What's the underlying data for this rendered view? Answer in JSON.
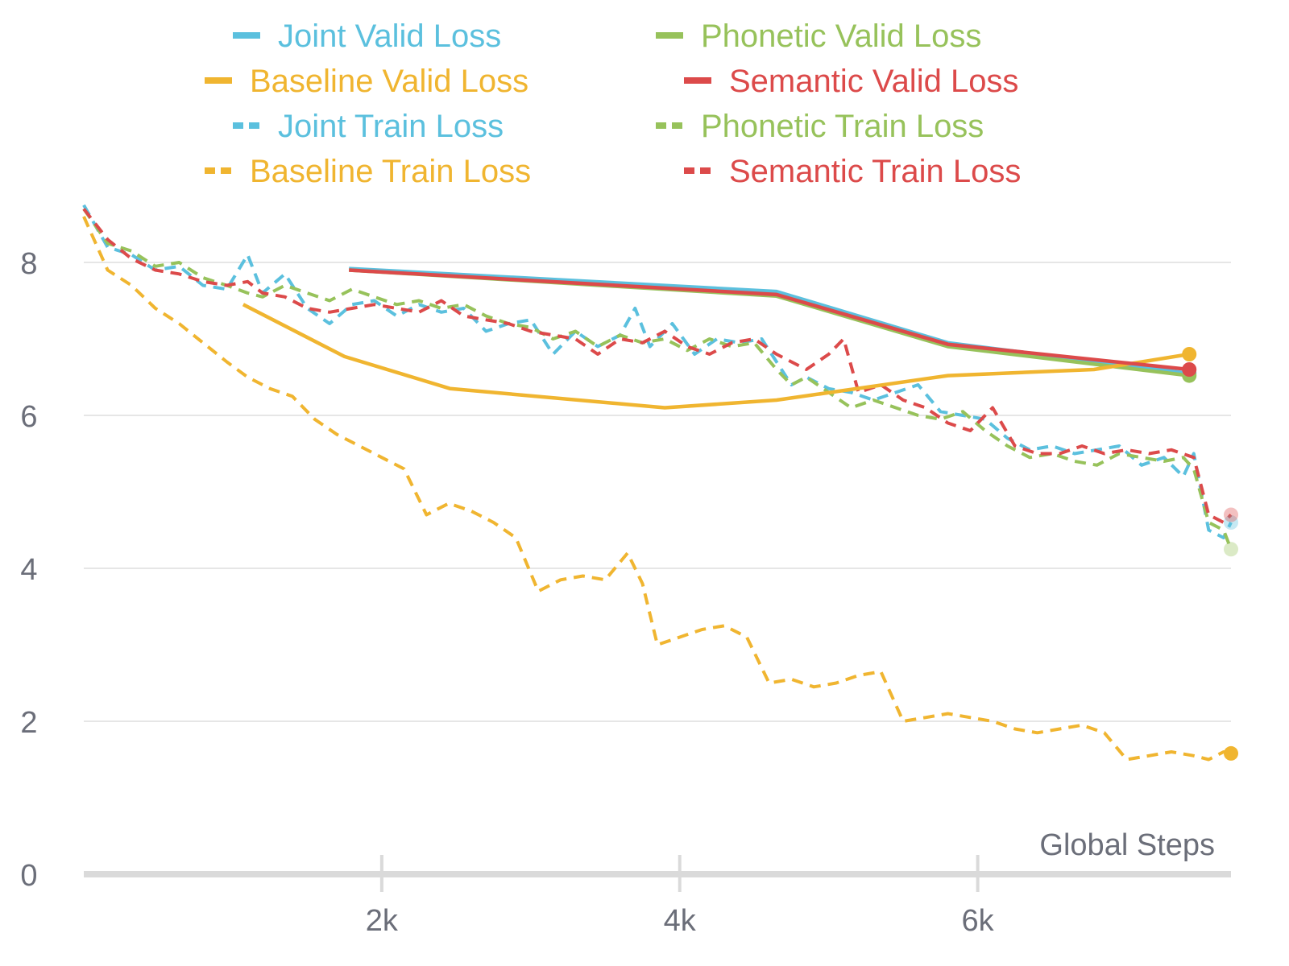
{
  "chart_data": {
    "type": "line",
    "xlabel": "Global Steps",
    "ylabel": "",
    "xlim": [
      0,
      7700
    ],
    "ylim": [
      0,
      8.8
    ],
    "x_ticks": [
      {
        "value": 2000,
        "label": "2k"
      },
      {
        "value": 4000,
        "label": "4k"
      },
      {
        "value": 6000,
        "label": "6k"
      }
    ],
    "y_ticks": [
      {
        "value": 0,
        "label": "0"
      },
      {
        "value": 2,
        "label": "2"
      },
      {
        "value": 4,
        "label": "4"
      },
      {
        "value": 6,
        "label": "6"
      },
      {
        "value": 8,
        "label": "8"
      }
    ],
    "grid": true,
    "legend_position": "top",
    "series": [
      {
        "name": "Joint Valid Loss",
        "color": "#5bc0de",
        "dash": false,
        "end_marker": true,
        "x": [
          1780,
          4650,
          5800,
          7420
        ],
        "y": [
          7.92,
          7.62,
          6.95,
          6.55
        ]
      },
      {
        "name": "Phonetic Valid Loss",
        "color": "#97c25b",
        "dash": false,
        "end_marker": true,
        "x": [
          1780,
          4650,
          5800,
          7420
        ],
        "y": [
          7.9,
          7.56,
          6.9,
          6.52
        ]
      },
      {
        "name": "Baseline Valid Loss",
        "color": "#f0b530",
        "dash": false,
        "end_marker": true,
        "x": [
          1070,
          1750,
          2460,
          3900,
          4650,
          5800,
          6780,
          7420
        ],
        "y": [
          7.45,
          6.77,
          6.35,
          6.1,
          6.2,
          6.52,
          6.6,
          6.8
        ]
      },
      {
        "name": "Semantic Valid Loss",
        "color": "#dc4a4a",
        "dash": false,
        "end_marker": true,
        "x": [
          1780,
          4650,
          5800,
          7420
        ],
        "y": [
          7.9,
          7.58,
          6.93,
          6.6
        ]
      },
      {
        "name": "Joint Train Loss",
        "color": "#5bc0de",
        "dash": true,
        "end_marker": true,
        "end_marker_faded": true,
        "x": [
          0,
          160,
          320,
          480,
          640,
          800,
          960,
          1100,
          1200,
          1350,
          1500,
          1650,
          1800,
          1950,
          2100,
          2250,
          2400,
          2550,
          2700,
          2850,
          3000,
          3150,
          3300,
          3450,
          3600,
          3700,
          3800,
          3950,
          4100,
          4250,
          4400,
          4550,
          4650,
          4750,
          4850,
          5000,
          5150,
          5300,
          5450,
          5600,
          5750,
          5900,
          6050,
          6200,
          6350,
          6500,
          6650,
          6800,
          6950,
          7100,
          7250,
          7380,
          7450,
          7550,
          7650,
          7700
        ],
        "y": [
          8.75,
          8.2,
          8.1,
          7.9,
          7.95,
          7.7,
          7.65,
          8.1,
          7.6,
          7.85,
          7.4,
          7.2,
          7.45,
          7.5,
          7.3,
          7.45,
          7.35,
          7.4,
          7.1,
          7.2,
          7.25,
          6.8,
          7.1,
          6.9,
          7.05,
          7.4,
          6.9,
          7.2,
          6.8,
          7.0,
          6.95,
          7.0,
          6.7,
          6.4,
          6.5,
          6.35,
          6.3,
          6.2,
          6.3,
          6.4,
          6.05,
          6.0,
          5.95,
          5.7,
          5.55,
          5.6,
          5.5,
          5.55,
          5.6,
          5.35,
          5.45,
          5.2,
          5.5,
          4.5,
          4.4,
          4.6
        ]
      },
      {
        "name": "Phonetic Train Loss",
        "color": "#97c25b",
        "dash": true,
        "end_marker": true,
        "end_marker_faded": true,
        "x": [
          0,
          160,
          320,
          480,
          640,
          800,
          960,
          1100,
          1200,
          1350,
          1500,
          1650,
          1800,
          1950,
          2100,
          2250,
          2400,
          2550,
          2700,
          2850,
          3000,
          3150,
          3300,
          3450,
          3600,
          3750,
          3900,
          4050,
          4200,
          4350,
          4500,
          4650,
          4750,
          4850,
          5000,
          5150,
          5300,
          5450,
          5600,
          5750,
          5900,
          6050,
          6200,
          6350,
          6500,
          6650,
          6800,
          6950,
          7100,
          7250,
          7380,
          7450,
          7550,
          7650,
          7700
        ],
        "y": [
          8.7,
          8.25,
          8.15,
          7.95,
          8.0,
          7.8,
          7.7,
          7.6,
          7.55,
          7.7,
          7.6,
          7.5,
          7.65,
          7.55,
          7.45,
          7.5,
          7.4,
          7.45,
          7.3,
          7.2,
          7.15,
          7.0,
          7.1,
          6.9,
          7.05,
          6.95,
          7.0,
          6.85,
          7.0,
          6.9,
          6.95,
          6.6,
          6.4,
          6.5,
          6.3,
          6.1,
          6.2,
          6.1,
          6.0,
          5.95,
          6.05,
          5.8,
          5.6,
          5.45,
          5.5,
          5.4,
          5.35,
          5.5,
          5.45,
          5.4,
          5.45,
          5.3,
          4.6,
          4.5,
          4.25
        ]
      },
      {
        "name": "Baseline Train Loss",
        "color": "#f0b530",
        "dash": true,
        "end_marker": true,
        "x": [
          0,
          160,
          320,
          480,
          640,
          800,
          960,
          1100,
          1250,
          1400,
          1550,
          1700,
          1850,
          2000,
          2150,
          2300,
          2450,
          2600,
          2750,
          2900,
          3050,
          3200,
          3350,
          3500,
          3650,
          3750,
          3850,
          4000,
          4150,
          4300,
          4450,
          4600,
          4750,
          4900,
          5050,
          5200,
          5350,
          5500,
          5650,
          5800,
          5950,
          6100,
          6250,
          6400,
          6550,
          6700,
          6850,
          7000,
          7150,
          7300,
          7450,
          7550,
          7650,
          7700
        ],
        "y": [
          8.6,
          7.9,
          7.7,
          7.4,
          7.2,
          6.95,
          6.7,
          6.5,
          6.35,
          6.25,
          5.95,
          5.75,
          5.6,
          5.45,
          5.3,
          4.7,
          4.85,
          4.75,
          4.6,
          4.4,
          3.7,
          3.85,
          3.9,
          3.85,
          4.2,
          3.8,
          3.0,
          3.1,
          3.2,
          3.25,
          3.1,
          2.5,
          2.55,
          2.45,
          2.5,
          2.6,
          2.65,
          2.0,
          2.05,
          2.1,
          2.05,
          2.0,
          1.9,
          1.85,
          1.9,
          1.95,
          1.85,
          1.5,
          1.55,
          1.6,
          1.55,
          1.5,
          1.6,
          1.58
        ]
      },
      {
        "name": "Semantic Train Loss",
        "color": "#dc4a4a",
        "dash": true,
        "end_marker": true,
        "end_marker_faded": true,
        "x": [
          0,
          160,
          320,
          480,
          640,
          800,
          960,
          1100,
          1200,
          1350,
          1500,
          1650,
          1800,
          1950,
          2100,
          2250,
          2400,
          2550,
          2700,
          2850,
          3000,
          3150,
          3300,
          3450,
          3600,
          3750,
          3900,
          4050,
          4200,
          4350,
          4500,
          4650,
          4750,
          4850,
          5000,
          5100,
          5200,
          5350,
          5500,
          5650,
          5800,
          5950,
          6100,
          6250,
          6400,
          6550,
          6700,
          6850,
          7000,
          7150,
          7300,
          7450,
          7550,
          7650,
          7700
        ],
        "y": [
          8.7,
          8.3,
          8.05,
          7.9,
          7.85,
          7.75,
          7.7,
          7.75,
          7.6,
          7.55,
          7.4,
          7.35,
          7.4,
          7.45,
          7.4,
          7.35,
          7.5,
          7.3,
          7.25,
          7.2,
          7.1,
          7.05,
          7.0,
          6.8,
          7.0,
          6.95,
          7.1,
          6.9,
          6.8,
          6.95,
          7.0,
          6.8,
          6.7,
          6.6,
          6.8,
          7.0,
          6.3,
          6.4,
          6.2,
          6.1,
          5.9,
          5.8,
          6.1,
          5.6,
          5.5,
          5.5,
          5.6,
          5.5,
          5.55,
          5.5,
          5.55,
          5.45,
          4.7,
          4.6,
          4.7
        ]
      }
    ]
  }
}
